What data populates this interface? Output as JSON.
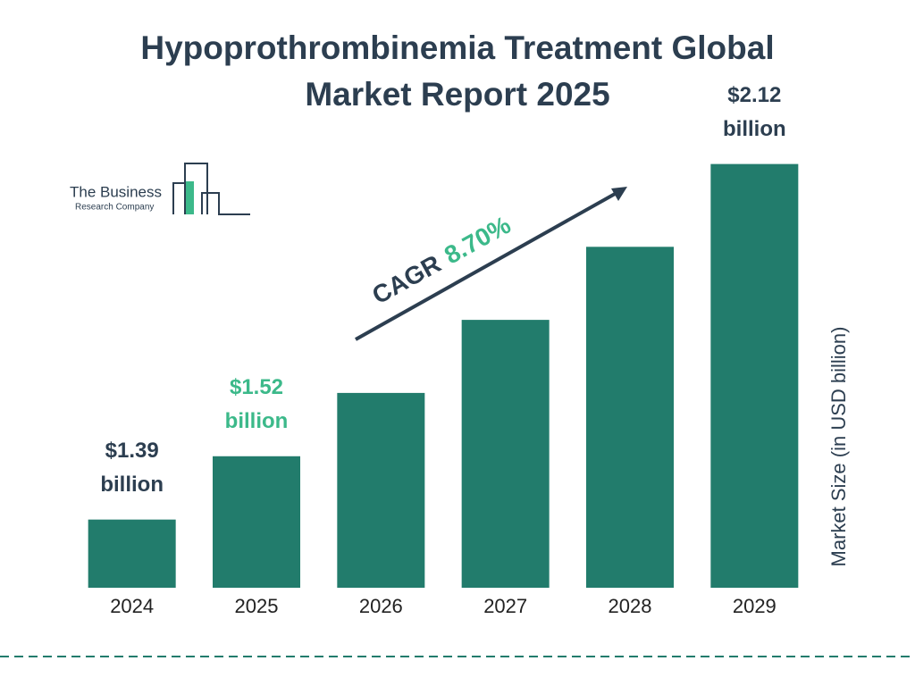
{
  "chart_data": {
    "type": "bar",
    "title": "Hypoprothrombinemia Treatment Global Market Report 2025",
    "categories": [
      "2024",
      "2025",
      "2026",
      "2027",
      "2028",
      "2029"
    ],
    "values": [
      1.39,
      1.52,
      1.65,
      1.8,
      1.95,
      2.12
    ],
    "value_labels": [
      "$1.39 billion",
      "$1.52 billion",
      null,
      null,
      null,
      "$2.12 billion"
    ],
    "color": "#227c6c",
    "label_colors": [
      "#2c3e50",
      "#3cb98a",
      null,
      null,
      null,
      "#2c3e50"
    ],
    "ylim": [
      1.25,
      2.2
    ],
    "y_label": "Market Size (in USD billion)",
    "annotation": {
      "text": "CAGR",
      "value": "8.70%"
    }
  },
  "logo": {
    "name": "The Business",
    "subtitle": "Research Company"
  }
}
